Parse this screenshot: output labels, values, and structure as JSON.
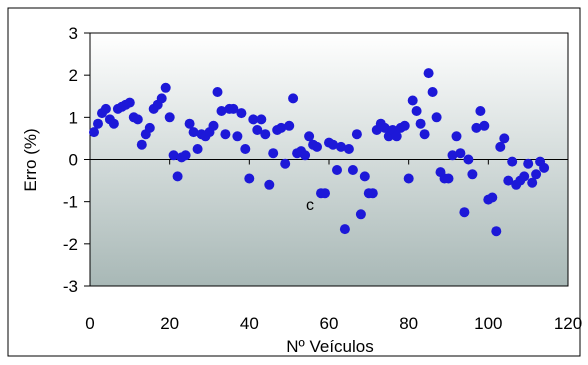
{
  "chart_data": {
    "type": "scatter",
    "xlabel": "Nº Veículos",
    "ylabel": "Erro (%)",
    "xlim": [
      0,
      120
    ],
    "ylim": [
      -3,
      3
    ],
    "x_ticks": [
      "0",
      "20",
      "40",
      "60",
      "80",
      "100",
      "120"
    ],
    "y_ticks": [
      "3",
      "2",
      "1",
      "0",
      "-1",
      "-2",
      "-3"
    ],
    "annotation": "c",
    "colors": {
      "marker": "#1d18d8",
      "plot_top": "#ffffff",
      "plot_bottom": "#a8b8b6",
      "frame": "#000000"
    },
    "grid": false,
    "legend": "none",
    "series": [
      {
        "x": [
          1,
          2,
          3,
          4,
          5,
          6,
          7,
          8,
          9,
          10,
          11,
          12,
          13,
          14,
          15,
          16,
          17,
          18,
          19,
          20,
          21,
          22,
          23,
          24,
          25,
          26,
          27,
          28,
          29,
          30,
          31,
          32,
          33,
          34,
          35,
          36,
          37,
          38,
          39,
          40,
          41,
          42,
          43,
          44,
          45,
          46,
          47,
          48,
          49,
          50,
          51,
          52,
          53,
          54,
          55,
          56,
          57,
          58,
          59,
          60,
          61,
          62,
          63,
          64,
          65,
          66,
          67,
          68,
          69,
          70,
          71,
          72,
          73,
          74,
          75,
          76,
          77,
          78,
          79,
          80,
          81,
          82,
          83,
          84,
          85,
          86,
          87,
          88,
          89,
          90,
          91,
          92,
          93,
          94,
          95,
          96,
          97,
          98,
          99,
          100,
          101,
          102,
          103,
          104,
          105,
          106,
          107,
          108,
          109,
          110,
          111,
          112,
          113,
          114
        ],
        "y": [
          0.65,
          0.85,
          1.1,
          1.2,
          0.95,
          0.85,
          1.2,
          1.25,
          1.3,
          1.35,
          1.0,
          0.95,
          0.35,
          0.6,
          0.75,
          1.2,
          1.3,
          1.45,
          1.7,
          1.0,
          0.1,
          -0.4,
          0.05,
          0.1,
          0.85,
          0.65,
          0.25,
          0.6,
          0.55,
          0.65,
          0.8,
          1.6,
          1.15,
          0.6,
          1.2,
          1.2,
          0.55,
          1.1,
          0.25,
          -0.45,
          0.95,
          0.7,
          0.95,
          0.6,
          -0.6,
          0.15,
          0.7,
          0.75,
          -0.1,
          0.8,
          1.45,
          0.15,
          0.2,
          0.1,
          0.55,
          0.35,
          0.3,
          -0.8,
          -0.8,
          0.4,
          0.35,
          -0.25,
          0.3,
          -1.65,
          0.25,
          -0.25,
          0.6,
          -1.3,
          -0.4,
          -0.8,
          -0.8,
          0.7,
          0.85,
          0.75,
          0.55,
          0.7,
          0.55,
          0.75,
          0.8,
          -0.45,
          1.4,
          1.15,
          0.85,
          0.6,
          2.05,
          1.6,
          1.0,
          -0.3,
          -0.45,
          -0.45,
          0.1,
          0.55,
          0.15,
          -1.25,
          0.0,
          -0.35,
          0.75,
          1.15,
          0.8,
          -0.95,
          -0.9,
          -1.7,
          0.3,
          0.5,
          -0.5,
          -0.05,
          -0.6,
          -0.5,
          -0.4,
          -0.1,
          -0.55,
          -0.35,
          -0.05,
          -0.2
        ]
      }
    ]
  }
}
